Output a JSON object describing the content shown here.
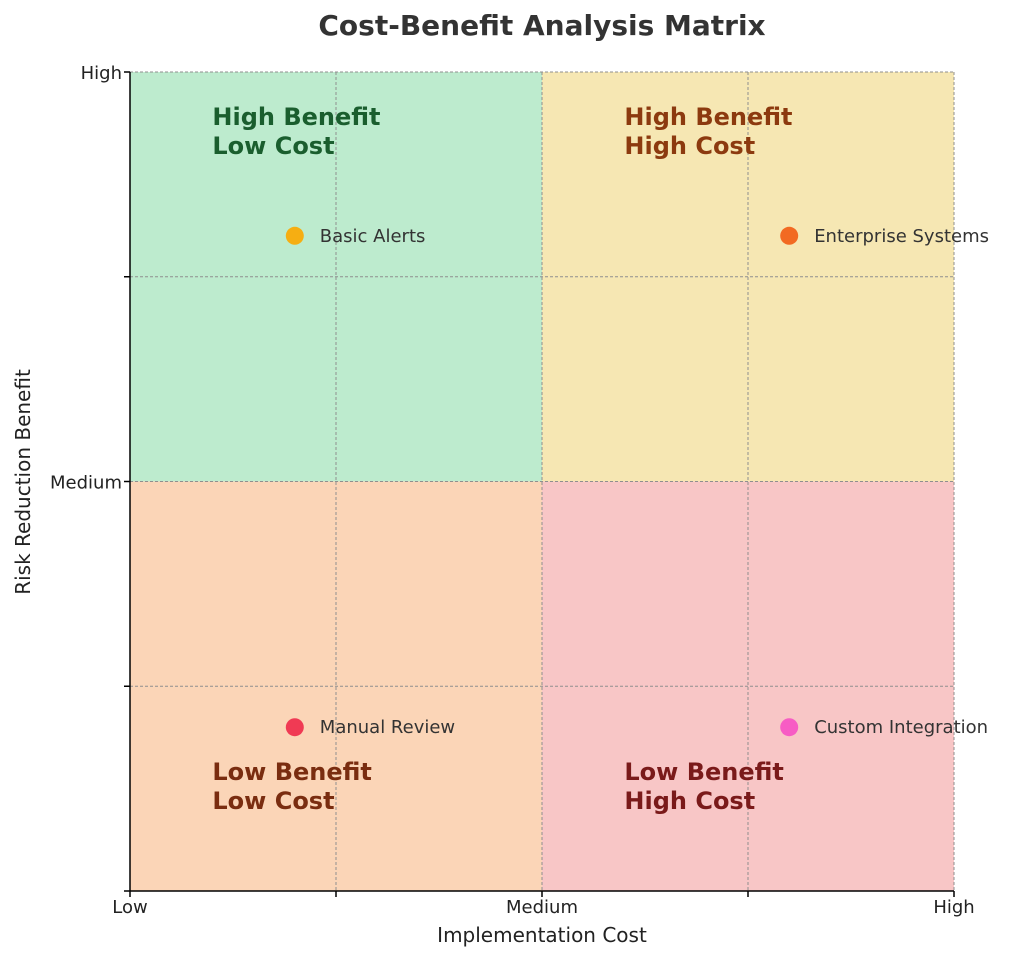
{
  "chart_data": {
    "type": "scatter",
    "title": "Cost-Benefit Analysis Matrix",
    "xlabel": "Implementation Cost",
    "ylabel": "Risk Reduction Benefit",
    "xlim": [
      0,
      2
    ],
    "ylim": [
      0,
      2
    ],
    "grid": true,
    "x_ticks": [
      {
        "value": 0,
        "label": "Low"
      },
      {
        "value": 1,
        "label": "Medium"
      },
      {
        "value": 2,
        "label": "High"
      }
    ],
    "y_ticks": [
      {
        "value": 0,
        "label": ""
      },
      {
        "value": 1,
        "label": "Medium"
      },
      {
        "value": 2,
        "label": "High"
      }
    ],
    "minor_ticks": [
      0.5,
      1.5
    ],
    "quadrants": [
      {
        "id": "high-benefit-low-cost",
        "x0": 0,
        "x1": 1,
        "y0": 1,
        "y1": 2,
        "color": "#bdebce",
        "text_color": "#1a5e2e",
        "lines": [
          "High Benefit",
          "Low Cost"
        ]
      },
      {
        "id": "high-benefit-high-cost",
        "x0": 1,
        "x1": 2,
        "y0": 1,
        "y1": 2,
        "color": "#f6e7b3",
        "text_color": "#8c3a0f",
        "lines": [
          "High Benefit",
          "High Cost"
        ]
      },
      {
        "id": "low-benefit-low-cost",
        "x0": 0,
        "x1": 1,
        "y0": 0,
        "y1": 1,
        "color": "#fbd5b7",
        "text_color": "#7a2d10",
        "lines": [
          "Low Benefit",
          "Low Cost"
        ]
      },
      {
        "id": "low-benefit-high-cost",
        "x0": 1,
        "x1": 2,
        "y0": 0,
        "y1": 1,
        "color": "#f8c6c6",
        "text_color": "#7a1a1a",
        "lines": [
          "Low Benefit",
          "High Cost"
        ]
      }
    ],
    "points": [
      {
        "label": "Basic Alerts",
        "x": 0.4,
        "y": 1.6,
        "color": "#f6ae12"
      },
      {
        "label": "Enterprise Systems",
        "x": 1.6,
        "y": 1.6,
        "color": "#f26a22"
      },
      {
        "label": "Manual Review",
        "x": 0.4,
        "y": 0.4,
        "color": "#f03a54"
      },
      {
        "label": "Custom Integration",
        "x": 1.6,
        "y": 0.4,
        "color": "#f75cc4"
      }
    ]
  }
}
